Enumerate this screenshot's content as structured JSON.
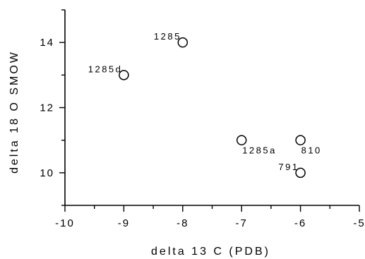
{
  "chart_data": {
    "type": "scatter",
    "xlabel": "delta 13 C (PDB)",
    "ylabel": "delta 18 O SMOW",
    "xlim": [
      -10,
      -5
    ],
    "ylim": [
      9,
      15
    ],
    "x_major_ticks": [
      -10,
      -9,
      -8,
      -7,
      -6,
      -5
    ],
    "x_tick_labels": [
      "-10",
      "-9",
      "-8",
      "-7",
      "-6",
      "-5"
    ],
    "x_minor_ticks": [
      -9.5,
      -8.5,
      -7.5,
      -6.5,
      -5.5
    ],
    "y_major_ticks": [
      10,
      12,
      14
    ],
    "y_tick_labels": [
      "10",
      "12",
      "14"
    ],
    "y_minor_ticks": [
      9,
      11,
      13,
      15
    ],
    "grid": false,
    "marker": "open-circle",
    "points": [
      {
        "label": "1285",
        "x": -8,
        "y": 14,
        "label_side": "above-left"
      },
      {
        "label": "1285d",
        "x": -9,
        "y": 13,
        "label_side": "above-left"
      },
      {
        "label": "1285a",
        "x": -7,
        "y": 11,
        "label_side": "below-right"
      },
      {
        "label": "810",
        "x": -6,
        "y": 11,
        "label_side": "below-right"
      },
      {
        "label": "791",
        "x": -6,
        "y": 10,
        "label_side": "above-left"
      }
    ]
  }
}
